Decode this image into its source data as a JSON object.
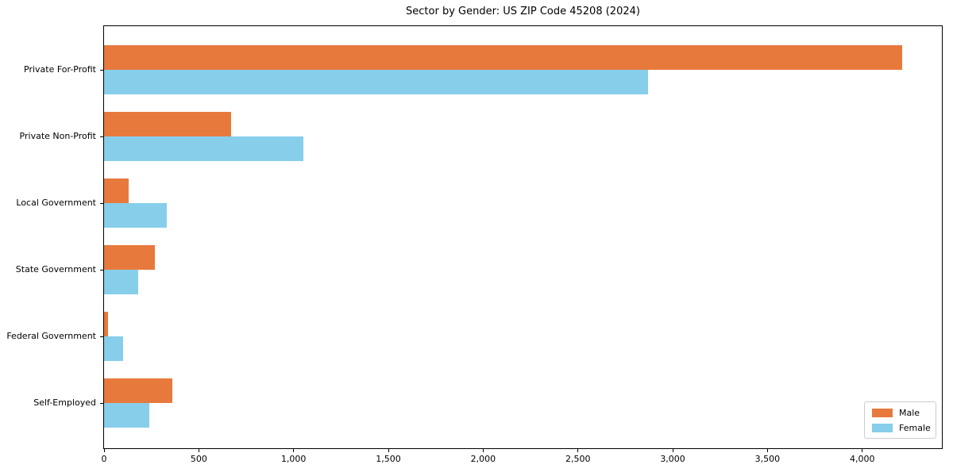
{
  "chart_data": {
    "type": "bar",
    "orientation": "horizontal",
    "title": "Sector by Gender: US ZIP Code 45208 (2024)",
    "categories": [
      "Private For-Profit",
      "Private Non-Profit",
      "Local Government",
      "State Government",
      "Federal Government",
      "Self-Employed"
    ],
    "series": [
      {
        "name": "Male",
        "color": "#E8793D",
        "values": [
          4210,
          670,
          130,
          270,
          20,
          360
        ]
      },
      {
        "name": "Female",
        "color": "#87CEEB",
        "values": [
          2870,
          1050,
          330,
          180,
          100,
          240
        ]
      }
    ],
    "xlabel": "",
    "ylabel": "",
    "xlim": [
      0,
      4420
    ],
    "x_ticks": [
      {
        "value": 0,
        "label": "0"
      },
      {
        "value": 500,
        "label": "500"
      },
      {
        "value": 1000,
        "label": "1,000"
      },
      {
        "value": 1500,
        "label": "1,500"
      },
      {
        "value": 2000,
        "label": "2,000"
      },
      {
        "value": 2500,
        "label": "2,500"
      },
      {
        "value": 3000,
        "label": "3,000"
      },
      {
        "value": 3500,
        "label": "3,500"
      },
      {
        "value": 4000,
        "label": "4,000"
      }
    ],
    "grid": false,
    "legend_position": "lower right",
    "background_color": "#ffffff",
    "frame_color": "#000000"
  }
}
